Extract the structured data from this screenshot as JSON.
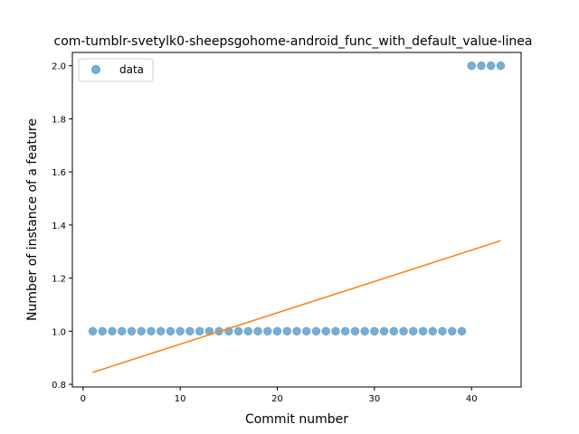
{
  "chart_data": {
    "type": "scatter",
    "title": "com-tumblr-svetylk0-sheepsgohome-android_func_with_default_value-linea",
    "xlabel": "Commit number",
    "ylabel": "Number of instance of a feature",
    "xlim": [
      -1.1,
      45.1
    ],
    "ylim": [
      0.79,
      2.05
    ],
    "xticks": [
      0,
      10,
      20,
      30,
      40
    ],
    "yticks": [
      0.8,
      1.0,
      1.2,
      1.4,
      1.6,
      1.8,
      2.0
    ],
    "xtick_labels": [
      "0",
      "10",
      "20",
      "30",
      "40"
    ],
    "ytick_labels": [
      "0.8",
      "1.0",
      "1.2",
      "1.4",
      "1.6",
      "1.8",
      "2.0"
    ],
    "grid": false,
    "legend_position": "top-left",
    "series": [
      {
        "name": "data",
        "kind": "scatter",
        "color": "#1f77b4",
        "x": [
          1,
          2,
          3,
          4,
          5,
          6,
          7,
          8,
          9,
          10,
          11,
          12,
          13,
          14,
          15,
          16,
          17,
          18,
          19,
          20,
          21,
          22,
          23,
          24,
          25,
          26,
          27,
          28,
          29,
          30,
          31,
          32,
          33,
          34,
          35,
          36,
          37,
          38,
          39,
          40,
          41,
          42,
          43
        ],
        "y": [
          1,
          1,
          1,
          1,
          1,
          1,
          1,
          1,
          1,
          1,
          1,
          1,
          1,
          1,
          1,
          1,
          1,
          1,
          1,
          1,
          1,
          1,
          1,
          1,
          1,
          1,
          1,
          1,
          1,
          1,
          1,
          1,
          1,
          1,
          1,
          1,
          1,
          1,
          1,
          2,
          2,
          2,
          2
        ]
      },
      {
        "kind": "line",
        "color": "#ff7f0e",
        "x": [
          1,
          43
        ],
        "y": [
          0.845,
          1.341
        ]
      }
    ]
  }
}
